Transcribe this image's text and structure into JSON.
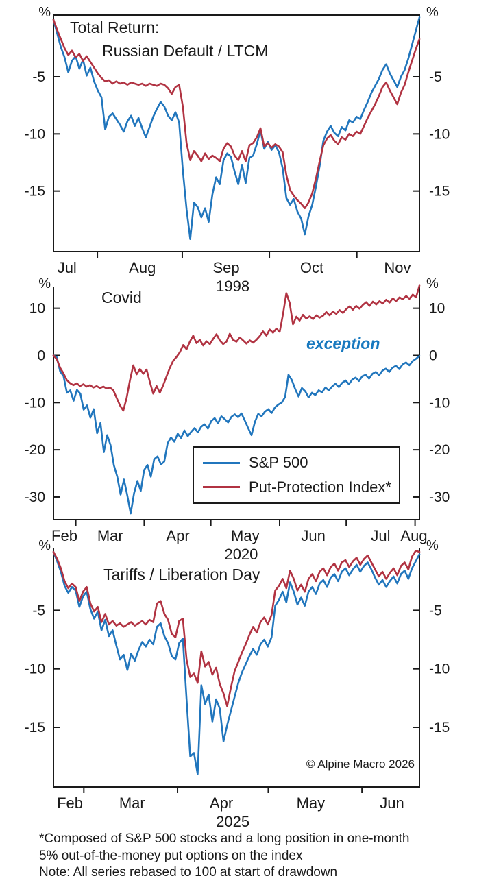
{
  "figure": {
    "copyright": "© Alpine Macro 2026",
    "footnote_lines": [
      "*Composed of S&P 500 stocks and a long position in one-month",
      "5% out-of-the-money put options on the index",
      "Note: All series rebased to 100 at start of drawdown"
    ],
    "legend": {
      "items": [
        {
          "label": "S&P 500",
          "color": "#2176bd"
        },
        {
          "label": "Put-Protection Index*",
          "color": "#b13342"
        }
      ]
    },
    "colors": {
      "blue": "#2176bd",
      "red": "#b13342",
      "axis": "#1a1a1a",
      "annotation_blue": "#1879bf"
    }
  },
  "chart_data": [
    {
      "id": "russian-default-ltcm-1998",
      "type": "line",
      "title_lines": [
        "Total Return:",
        "Russian Default / LTCM"
      ],
      "pct_symbol": "%",
      "year": {
        "label": "1998",
        "f": 0.49
      },
      "ylim": [
        -20.3,
        0.4
      ],
      "y_ticks": [
        -5,
        -10,
        -15
      ],
      "x_ticks": [
        0.12,
        0.352,
        0.59,
        0.829
      ],
      "x_labels": [
        {
          "label": "Jul",
          "f": 0.037
        },
        {
          "label": "Aug",
          "f": 0.243
        },
        {
          "label": "Sep",
          "f": 0.472
        },
        {
          "label": "Oct",
          "f": 0.706
        },
        {
          "label": "Nov",
          "f": 0.94
        }
      ],
      "top_border": true,
      "series": [
        {
          "name": "S&P 500",
          "color": "#2176bd",
          "values": [
            0,
            -1.2,
            -2.4,
            -3.3,
            -4.6,
            -3.6,
            -3.2,
            -4.3,
            -3.5,
            -4.9,
            -4.2,
            -5.4,
            -6.2,
            -6.8,
            -9.6,
            -8.5,
            -8.2,
            -8.7,
            -9.2,
            -9.8,
            -8.9,
            -8.4,
            -9.3,
            -8.6,
            -9.5,
            -10.3,
            -9.4,
            -8.5,
            -7.8,
            -7.2,
            -7.6,
            -8.4,
            -8.8,
            -8.1,
            -9.0,
            -13.2,
            -16.6,
            -19.2,
            -16.0,
            -16.4,
            -17.3,
            -16.5,
            -17.7,
            -15.3,
            -13.8,
            -14.4,
            -12.3,
            -11.7,
            -12.0,
            -13.3,
            -14.4,
            -12.7,
            -14.3,
            -12.1,
            -11.9,
            -10.9,
            -9.7,
            -11.3,
            -10.7,
            -11.4,
            -11.0,
            -11.6,
            -13.0,
            -15.6,
            -16.2,
            -15.7,
            -16.8,
            -17.4,
            -18.8,
            -17.2,
            -16.2,
            -14.6,
            -12.8,
            -10.6,
            -9.8,
            -9.3,
            -9.9,
            -10.2,
            -9.4,
            -9.7,
            -8.8,
            -9.0,
            -8.5,
            -8.7,
            -7.9,
            -7.2,
            -6.4,
            -5.8,
            -5.2,
            -4.4,
            -3.9,
            -4.7,
            -5.3,
            -5.9,
            -5.0,
            -4.4,
            -3.4,
            -2.2,
            -1.0,
            0.2
          ]
        },
        {
          "name": "Put-Protection Index*",
          "color": "#b13342",
          "values": [
            0,
            -0.9,
            -1.7,
            -2.5,
            -3.1,
            -2.7,
            -3.3,
            -3.0,
            -3.6,
            -3.2,
            -3.7,
            -4.2,
            -4.7,
            -5.1,
            -5.4,
            -5.3,
            -5.6,
            -5.4,
            -5.6,
            -5.5,
            -5.7,
            -5.5,
            -5.6,
            -5.7,
            -5.6,
            -5.8,
            -5.6,
            -5.7,
            -5.8,
            -5.6,
            -5.7,
            -6.0,
            -6.5,
            -5.9,
            -5.7,
            -7.6,
            -10.8,
            -12.3,
            -11.5,
            -11.9,
            -12.4,
            -11.7,
            -12.2,
            -11.9,
            -12.1,
            -12.4,
            -11.3,
            -10.8,
            -11.1,
            -11.9,
            -12.3,
            -11.5,
            -12.4,
            -11.0,
            -10.8,
            -10.3,
            -9.5,
            -11.1,
            -10.8,
            -11.2,
            -10.9,
            -11.1,
            -11.6,
            -13.6,
            -14.9,
            -15.4,
            -15.8,
            -16.1,
            -16.5,
            -16.0,
            -15.2,
            -13.9,
            -12.4,
            -11.0,
            -10.4,
            -10.1,
            -10.6,
            -10.9,
            -10.3,
            -10.5,
            -10.0,
            -10.2,
            -9.8,
            -10.0,
            -9.3,
            -8.6,
            -8.0,
            -7.4,
            -6.7,
            -5.9,
            -5.5,
            -6.2,
            -6.8,
            -7.4,
            -6.4,
            -5.7,
            -4.6,
            -3.6,
            -2.6,
            -1.7
          ]
        }
      ]
    },
    {
      "id": "covid-2020",
      "type": "line",
      "title_lines": [
        "Covid"
      ],
      "pct_symbol": "%",
      "year": {
        "label": "2020",
        "f": 0.513
      },
      "annotation": {
        "label": "exception",
        "color": "#1879bf"
      },
      "ylim": [
        -34.8,
        14.6
      ],
      "y_ticks": [
        10,
        0,
        -10,
        -20,
        -30
      ],
      "x_ticks": [
        0.061,
        0.248,
        0.43,
        0.618,
        0.8,
        0.988
      ],
      "x_labels": [
        {
          "label": "Feb",
          "f": 0.03
        },
        {
          "label": "Mar",
          "f": 0.155
        },
        {
          "label": "Apr",
          "f": 0.34
        },
        {
          "label": "May",
          "f": 0.524
        },
        {
          "label": "Jun",
          "f": 0.71
        },
        {
          "label": "Jul",
          "f": 0.894
        },
        {
          "label": "Aug",
          "f": 0.985
        }
      ],
      "top_border": false,
      "series": [
        {
          "name": "S&P 500",
          "color": "#2176bd",
          "values": [
            0,
            -0.4,
            -3.4,
            -4.4,
            -7.9,
            -7.4,
            -9.6,
            -7.3,
            -8.1,
            -11.5,
            -10.6,
            -13.2,
            -11.4,
            -16.5,
            -14.3,
            -20.5,
            -16.9,
            -19.0,
            -23.3,
            -25.7,
            -29.5,
            -26.3,
            -29.7,
            -33.5,
            -29.2,
            -26.6,
            -28.7,
            -24.3,
            -23.2,
            -25.7,
            -22.0,
            -21.4,
            -23.1,
            -22.5,
            -18.6,
            -17.4,
            -18.3,
            -16.6,
            -17.5,
            -15.9,
            -17.1,
            -16.2,
            -15.4,
            -16.3,
            -15.1,
            -14.6,
            -15.5,
            -13.9,
            -13.3,
            -14.4,
            -12.9,
            -13.5,
            -14.2,
            -13.0,
            -12.5,
            -13.1,
            -12.3,
            -13.8,
            -15.4,
            -16.9,
            -14.1,
            -12.4,
            -12.9,
            -11.9,
            -11.4,
            -12.2,
            -11.0,
            -10.4,
            -10.0,
            -8.8,
            -4.1,
            -5.2,
            -7.1,
            -8.7,
            -6.9,
            -7.6,
            -8.9,
            -7.9,
            -8.4,
            -7.4,
            -7.8,
            -6.8,
            -7.4,
            -6.6,
            -6.0,
            -6.7,
            -5.8,
            -5.3,
            -6.1,
            -5.1,
            -4.7,
            -5.4,
            -4.4,
            -4.1,
            -4.9,
            -3.9,
            -3.5,
            -4.2,
            -3.2,
            -2.8,
            -3.5,
            -2.6,
            -2.2,
            -2.9,
            -1.9,
            -1.5,
            -2.1,
            -1.2,
            -0.7,
            -0.1
          ]
        },
        {
          "name": "Put-Protection Index*",
          "color": "#b13342",
          "values": [
            0,
            -0.8,
            -2.6,
            -3.8,
            -5.2,
            -5.9,
            -6.3,
            -5.9,
            -6.5,
            -6.1,
            -6.6,
            -6.3,
            -6.8,
            -6.5,
            -6.9,
            -6.6,
            -7.0,
            -6.8,
            -7.4,
            -9.0,
            -10.6,
            -11.7,
            -9.0,
            -5.2,
            -2.1,
            -4.0,
            -2.9,
            -3.9,
            -3.0,
            -5.7,
            -8.1,
            -6.5,
            -7.9,
            -6.3,
            -4.4,
            -2.6,
            -1.1,
            -0.3,
            0.7,
            2.2,
            1.3,
            2.9,
            4.2,
            2.6,
            3.3,
            2.1,
            3.0,
            2.4,
            3.5,
            4.5,
            3.2,
            2.4,
            2.9,
            4.6,
            3.3,
            2.9,
            3.8,
            3.2,
            2.5,
            3.2,
            2.7,
            3.3,
            4.1,
            5.1,
            4.2,
            5.5,
            4.8,
            5.7,
            5.0,
            8.8,
            13.2,
            11.1,
            6.6,
            8.2,
            7.4,
            8.6,
            7.8,
            8.3,
            7.7,
            8.5,
            8.0,
            8.4,
            9.2,
            8.5,
            9.3,
            8.8,
            9.6,
            9.0,
            9.8,
            10.4,
            9.7,
            10.5,
            9.9,
            10.7,
            11.3,
            10.5,
            11.4,
            10.8,
            11.5,
            11.0,
            11.8,
            11.2,
            12.1,
            11.5,
            12.3,
            11.9,
            12.6,
            12.0,
            12.9,
            12.3,
            14.8
          ]
        }
      ]
    },
    {
      "id": "tariffs-liberation-day-2025",
      "type": "line",
      "title_lines": [
        "Tariffs / Liberation Day"
      ],
      "pct_symbol": "%",
      "year": {
        "label": "2025",
        "f": 0.49
      },
      "ylim": [
        -20.1,
        0.3
      ],
      "y_ticks": [
        -5,
        -10,
        -15
      ],
      "x_ticks": [
        0.083,
        0.339,
        0.587,
        0.843
      ],
      "x_labels": [
        {
          "label": "Feb",
          "f": 0.045
        },
        {
          "label": "Mar",
          "f": 0.215
        },
        {
          "label": "Apr",
          "f": 0.459
        },
        {
          "label": "May",
          "f": 0.703
        },
        {
          "label": "Jun",
          "f": 0.925
        }
      ],
      "top_border": false,
      "series": [
        {
          "name": "S&P 500",
          "color": "#2176bd",
          "values": [
            0,
            -0.8,
            -1.7,
            -2.9,
            -3.5,
            -3.0,
            -3.3,
            -4.7,
            -3.8,
            -3.4,
            -4.9,
            -5.7,
            -5.1,
            -6.7,
            -5.8,
            -7.2,
            -6.7,
            -8.0,
            -9.2,
            -8.8,
            -10.1,
            -8.7,
            -9.3,
            -8.4,
            -7.7,
            -8.1,
            -7.5,
            -7.9,
            -6.4,
            -6.1,
            -7.2,
            -7.8,
            -8.9,
            -9.2,
            -7.8,
            -7.4,
            -12.6,
            -17.5,
            -17.2,
            -19.0,
            -11.4,
            -13.0,
            -12.2,
            -14.5,
            -12.6,
            -13.4,
            -16.2,
            -14.8,
            -13.6,
            -12.4,
            -11.2,
            -10.3,
            -9.6,
            -8.9,
            -8.3,
            -8.8,
            -7.9,
            -7.5,
            -8.1,
            -7.3,
            -4.6,
            -4.1,
            -3.4,
            -4.3,
            -2.6,
            -3.4,
            -4.5,
            -3.9,
            -4.6,
            -3.4,
            -3.0,
            -3.6,
            -2.7,
            -2.4,
            -3.0,
            -2.2,
            -1.9,
            -2.5,
            -1.7,
            -1.4,
            -2.0,
            -1.5,
            -1.1,
            -1.7,
            -1.2,
            -0.9,
            -1.5,
            -2.2,
            -2.8,
            -2.4,
            -3.0,
            -2.5,
            -2.1,
            -2.7,
            -1.9,
            -1.6,
            -2.3,
            -1.4,
            -0.8,
            -0.2
          ]
        },
        {
          "name": "Put-Protection Index*",
          "color": "#b13342",
          "values": [
            0,
            -0.6,
            -1.4,
            -2.5,
            -3.1,
            -2.7,
            -3.0,
            -4.2,
            -3.4,
            -3.0,
            -4.4,
            -5.1,
            -4.7,
            -6.0,
            -5.3,
            -6.2,
            -5.9,
            -6.3,
            -6.1,
            -6.4,
            -6.2,
            -6.0,
            -6.3,
            -6.1,
            -5.9,
            -6.2,
            -5.8,
            -6.0,
            -4.4,
            -4.2,
            -5.3,
            -5.8,
            -7.0,
            -7.3,
            -5.9,
            -5.7,
            -9.2,
            -10.7,
            -10.4,
            -11.2,
            -8.5,
            -9.8,
            -9.4,
            -10.5,
            -9.9,
            -11.3,
            -12.1,
            -13.2,
            -11.6,
            -10.2,
            -9.4,
            -8.6,
            -7.9,
            -7.1,
            -6.4,
            -6.9,
            -6.0,
            -5.6,
            -6.2,
            -5.4,
            -3.3,
            -2.9,
            -2.3,
            -3.1,
            -1.6,
            -2.3,
            -3.3,
            -2.8,
            -3.4,
            -2.3,
            -1.9,
            -2.5,
            -1.7,
            -1.4,
            -2.0,
            -1.3,
            -1.0,
            -1.6,
            -0.9,
            -0.7,
            -1.3,
            -0.8,
            -0.5,
            -1.1,
            -0.6,
            -0.3,
            -0.9,
            -1.5,
            -2.1,
            -1.7,
            -2.3,
            -1.8,
            -1.4,
            -2.0,
            -1.2,
            -0.9,
            -1.5,
            -0.4,
            0.1,
            0.0
          ]
        }
      ]
    }
  ]
}
